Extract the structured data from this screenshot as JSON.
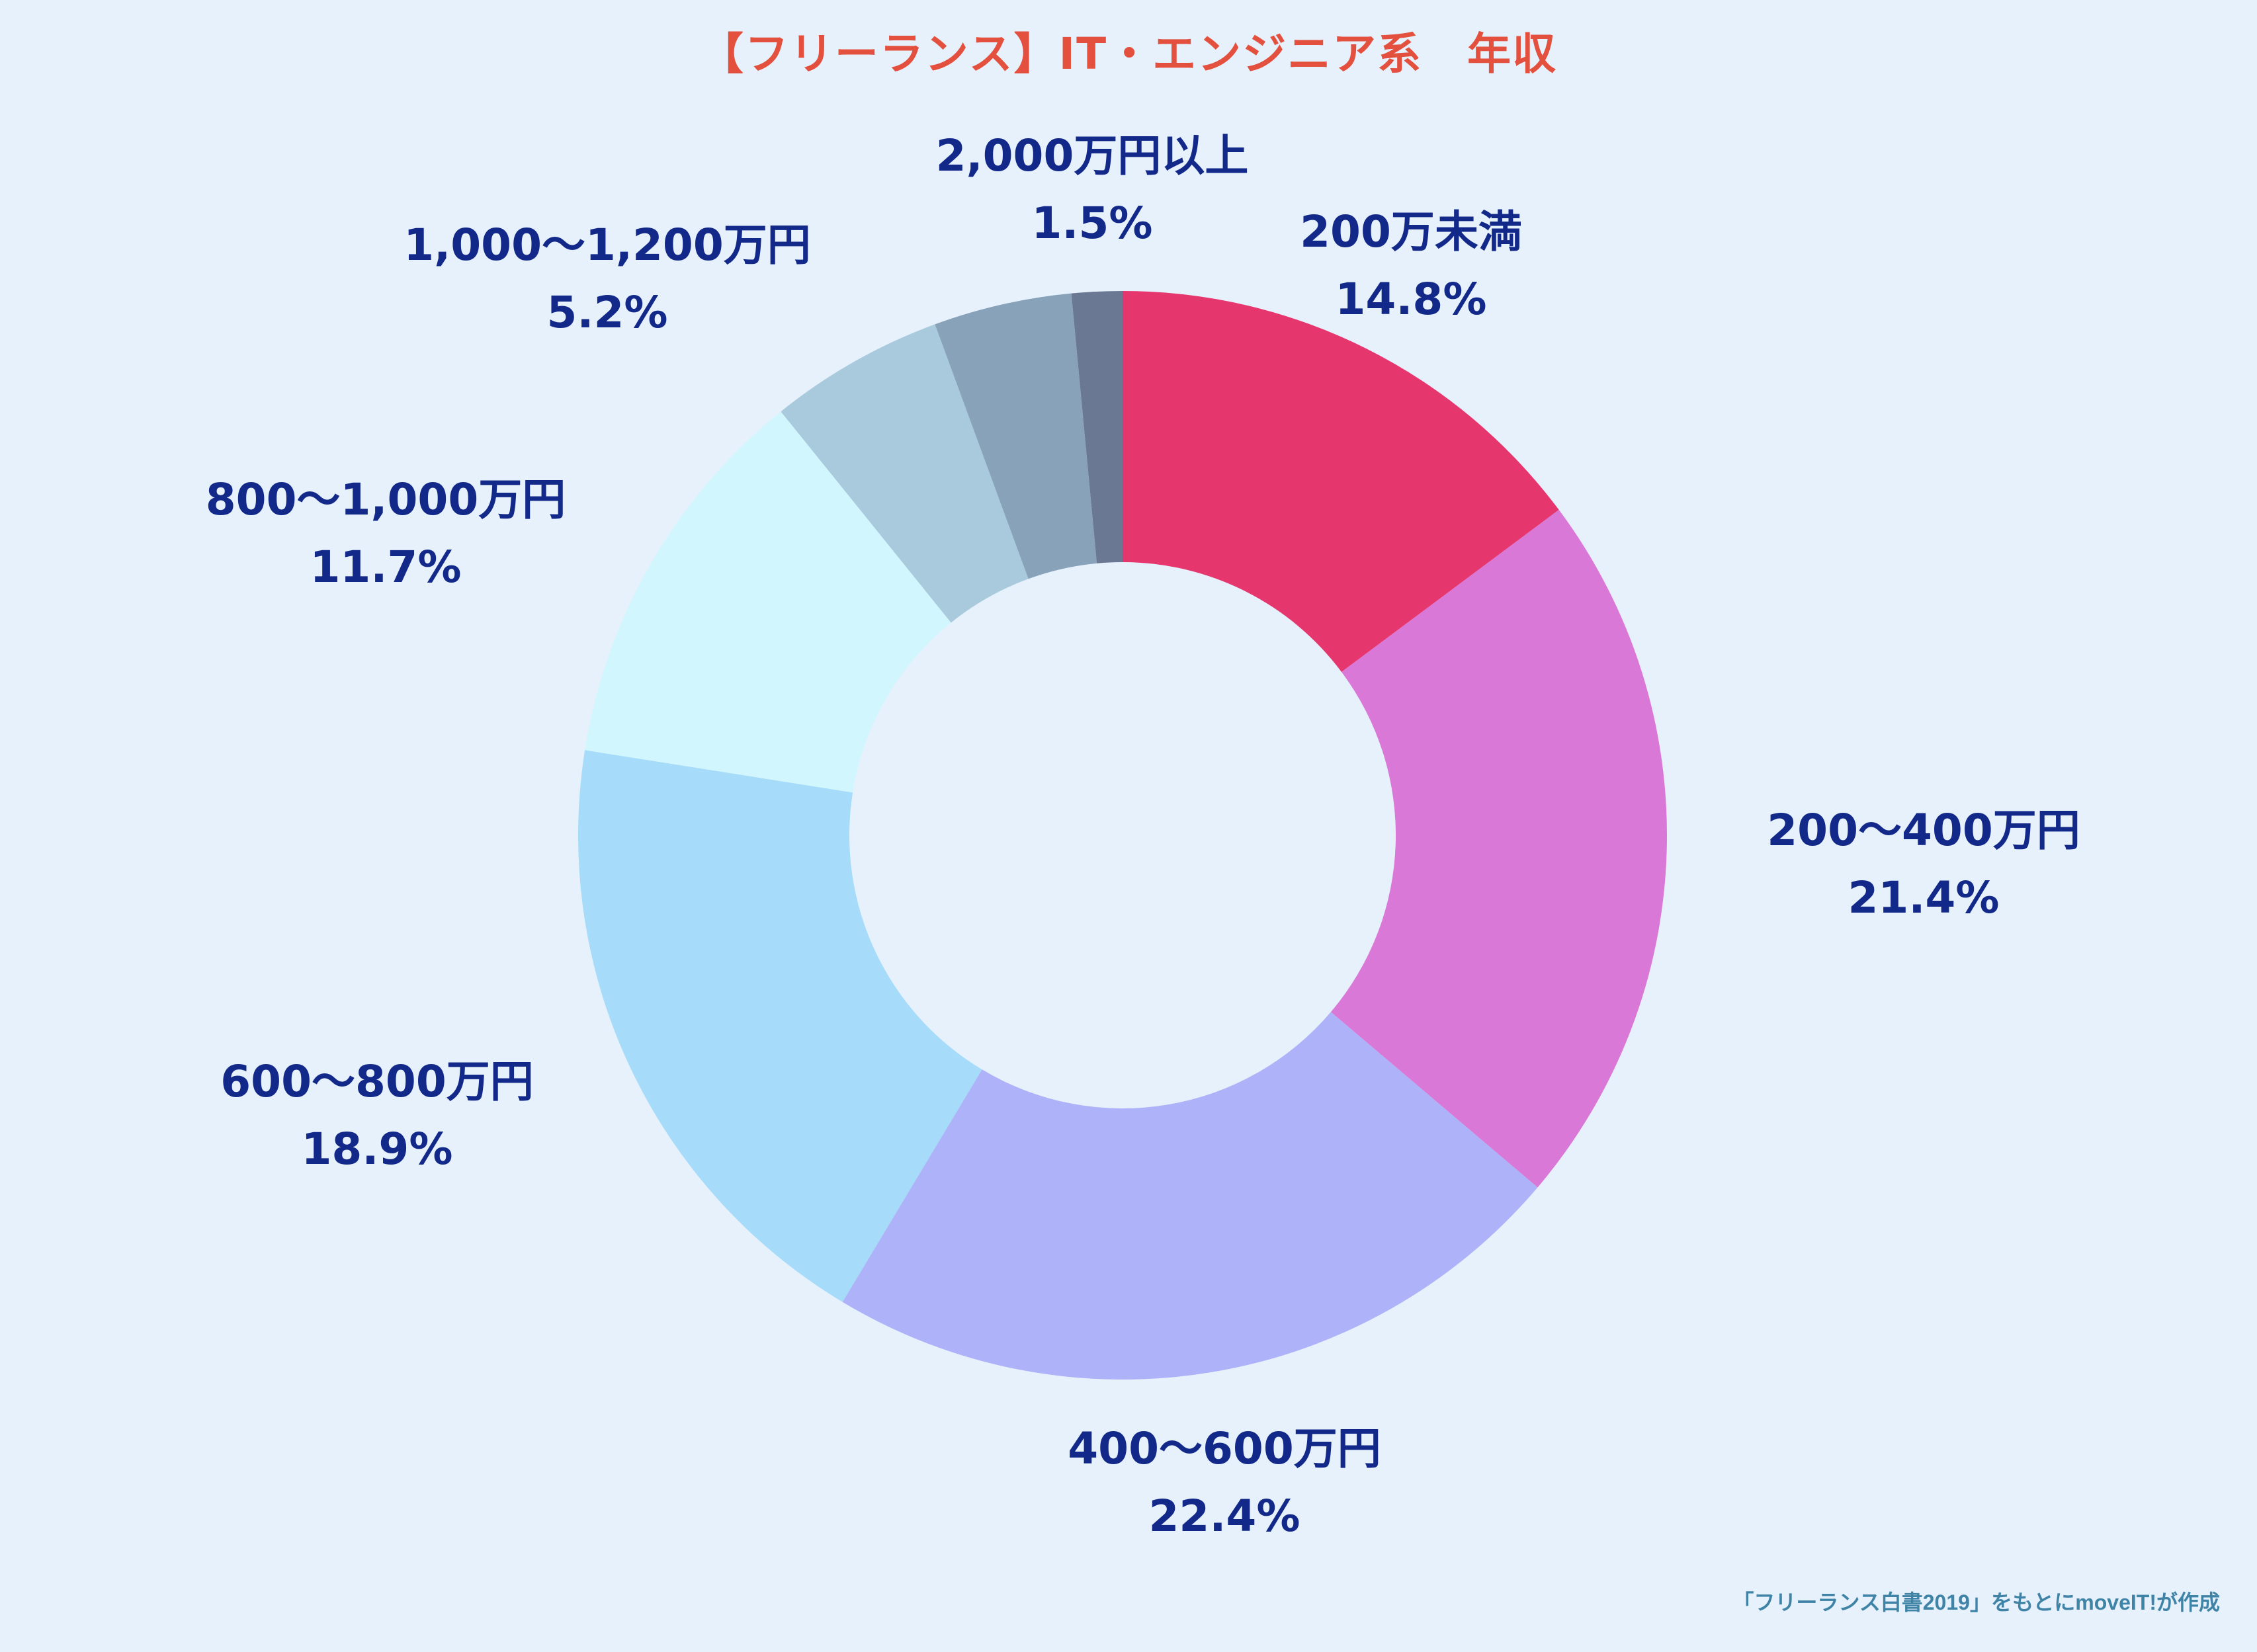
{
  "chart_data": {
    "type": "pie",
    "variant": "donut",
    "title": "【フリーランス】IT・エンジニア系　年収",
    "start_angle": "12 o'clock",
    "direction": "clockwise",
    "slices": [
      {
        "label": "200万未満",
        "value": 14.8,
        "value_label": "14.8%",
        "color": "#e5376e"
      },
      {
        "label": "200〜400万円",
        "value": 21.4,
        "value_label": "21.4%",
        "color": "#da78d8"
      },
      {
        "label": "400〜600万円",
        "value": 22.4,
        "value_label": "22.4%",
        "color": "#aeb2f8"
      },
      {
        "label": "600〜800万円",
        "value": 18.9,
        "value_label": "18.9%",
        "color": "#a6dcf9"
      },
      {
        "label": "800〜1,000万円",
        "value": 11.7,
        "value_label": "11.7%",
        "color": "#d1f6fd"
      },
      {
        "label": "1,000〜1,200万円",
        "value": 5.2,
        "value_label": "5.2%",
        "color": "#a9cadd"
      },
      {
        "label": "",
        "value": 4.1,
        "value_label": "",
        "color": "#87a2b9"
      },
      {
        "label": "2,000万円以上",
        "value": 1.5,
        "value_label": "1.5%",
        "color": "#6b7893"
      }
    ],
    "source_note": "「フリーランス白書2019」をもとにmoveIT!が作成"
  },
  "colors": {
    "background": "#e6f1fc",
    "title": "#e4503e",
    "label": "#13298a",
    "source": "#3f83a6"
  }
}
